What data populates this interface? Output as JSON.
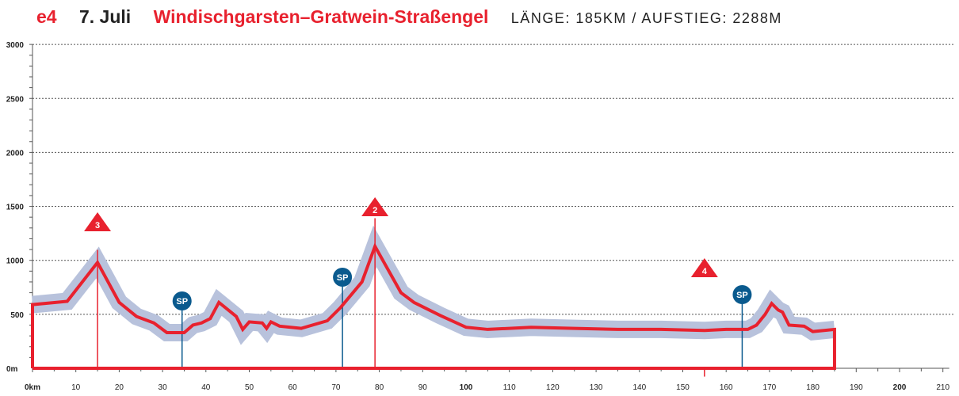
{
  "header": {
    "stage": "e4",
    "date": "7. Juli",
    "route": "Windischgarsten–Gratwein-Straßengel",
    "stats": "LÄNGE: 185KM / AUFSTIEG: 2288M"
  },
  "chart_data": {
    "type": "area",
    "title": "Windischgarsten–Gratwein-Straßengel",
    "xlim": [
      0,
      210
    ],
    "ylim": [
      0,
      3000
    ],
    "x_ticks": [
      {
        "v": 0,
        "label": "0km",
        "bold": true
      },
      {
        "v": 10,
        "label": "10"
      },
      {
        "v": 20,
        "label": "20"
      },
      {
        "v": 30,
        "label": "30"
      },
      {
        "v": 40,
        "label": "40"
      },
      {
        "v": 50,
        "label": "50"
      },
      {
        "v": 60,
        "label": "60"
      },
      {
        "v": 70,
        "label": "70"
      },
      {
        "v": 80,
        "label": "80"
      },
      {
        "v": 90,
        "label": "90"
      },
      {
        "v": 100,
        "label": "100",
        "bold": true
      },
      {
        "v": 110,
        "label": "110"
      },
      {
        "v": 120,
        "label": "120"
      },
      {
        "v": 130,
        "label": "130"
      },
      {
        "v": 140,
        "label": "140"
      },
      {
        "v": 150,
        "label": "150"
      },
      {
        "v": 160,
        "label": "160"
      },
      {
        "v": 170,
        "label": "170"
      },
      {
        "v": 180,
        "label": "180"
      },
      {
        "v": 190,
        "label": "190"
      },
      {
        "v": 200,
        "label": "200",
        "bold": true
      },
      {
        "v": 210,
        "label": "210"
      }
    ],
    "y_ticks": [
      {
        "v": 0,
        "label": "0m"
      },
      {
        "v": 500,
        "label": "500"
      },
      {
        "v": 1000,
        "label": "1000"
      },
      {
        "v": 1500,
        "label": "1500"
      },
      {
        "v": 2000,
        "label": "2000"
      },
      {
        "v": 2500,
        "label": "2500"
      },
      {
        "v": 3000,
        "label": "3000"
      }
    ],
    "grid": true,
    "profile": {
      "km": [
        0,
        8,
        15,
        20,
        24,
        28,
        31,
        35,
        37,
        39,
        41,
        43,
        47,
        48.5,
        50,
        53,
        54,
        55,
        57,
        62,
        68,
        71,
        76,
        79,
        85,
        88,
        94,
        100,
        105,
        115,
        125,
        135,
        145,
        155,
        160,
        165,
        167,
        169,
        170.5,
        172,
        173,
        174.5,
        178,
        180,
        185
      ],
      "elevation": [
        590,
        620,
        980,
        610,
        480,
        420,
        330,
        330,
        400,
        420,
        460,
        610,
        480,
        360,
        430,
        420,
        370,
        430,
        390,
        370,
        440,
        560,
        800,
        1130,
        700,
        610,
        490,
        380,
        360,
        380,
        370,
        360,
        360,
        350,
        360,
        360,
        400,
        500,
        600,
        540,
        520,
        400,
        390,
        340,
        360
      ]
    },
    "climbs": [
      {
        "km": 15,
        "label": "3"
      },
      {
        "km": 79,
        "label": "2"
      },
      {
        "km": 155,
        "label": "4"
      }
    ],
    "sprints": [
      {
        "km": 34.5,
        "label": "SP"
      },
      {
        "km": 71.5,
        "label": "SP"
      },
      {
        "km": 163.7,
        "label": "SP"
      }
    ],
    "colors": {
      "profile": "#e8212e",
      "band": "#b8c2dc",
      "sprint": "#0a5a8e",
      "climb": "#e8212e"
    }
  }
}
